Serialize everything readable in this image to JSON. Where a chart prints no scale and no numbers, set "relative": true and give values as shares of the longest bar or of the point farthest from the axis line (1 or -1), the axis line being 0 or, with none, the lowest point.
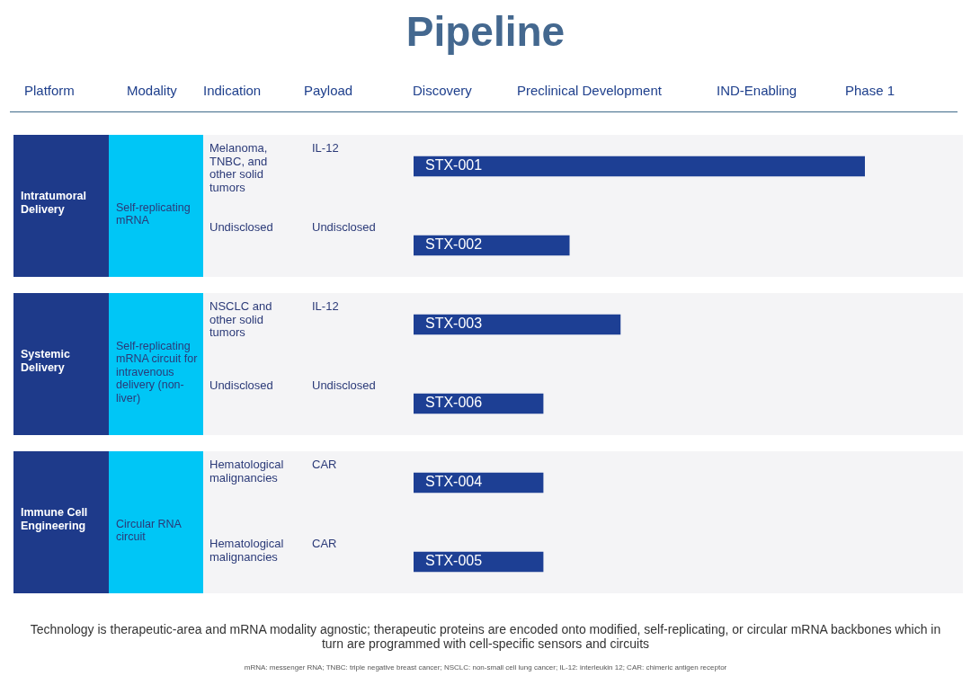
{
  "chart_data": {
    "type": "bar",
    "orientation": "horizontal",
    "relative": true,
    "title": "Pipeline",
    "categories": [
      "STX-001",
      "STX-002",
      "STX-003",
      "STX-006",
      "STX-004",
      "STX-005"
    ],
    "values": [
      1,
      0.345,
      0.458,
      0.287,
      0.287,
      0.287
    ],
    "color": "#1d3f94",
    "legend": false,
    "annotations": [
      "Platform",
      "Modality",
      "Indication",
      "Payload",
      "Discovery",
      "Preclinical Development",
      "IND-Enabling",
      "Phase 1",
      "Intratumoral Delivery",
      "Self-replicating mRNA",
      "Melanoma, TNBC, and other solid tumors",
      "IL-12",
      "Undisclosed",
      "Undisclosed",
      "Systemic Delivery",
      "Self-replicating mRNA circuit for intravenous delivery (non-liver)",
      "NSCLC and other solid tumors",
      "IL-12",
      "Undisclosed",
      "Undisclosed",
      "Immune Cell Engineering",
      "Circular RNA circuit",
      "Hematological malignancies",
      "CAR",
      "Hematological malignancies",
      "CAR",
      "Technology is therapeutic-area and mRNA modality agnostic; therapeutic proteins are encoded onto modified, self-replicating, or circular mRNA backbones which in turn are programmed with cell-specific sensors and circuits",
      "mRNA: messenger RNA; TNBC: triple negative breast cancer; NSCLC: non-small cell lung cancer; IL-12: interleukin 12; CAR: chimeric antigen receptor"
    ]
  }
}
